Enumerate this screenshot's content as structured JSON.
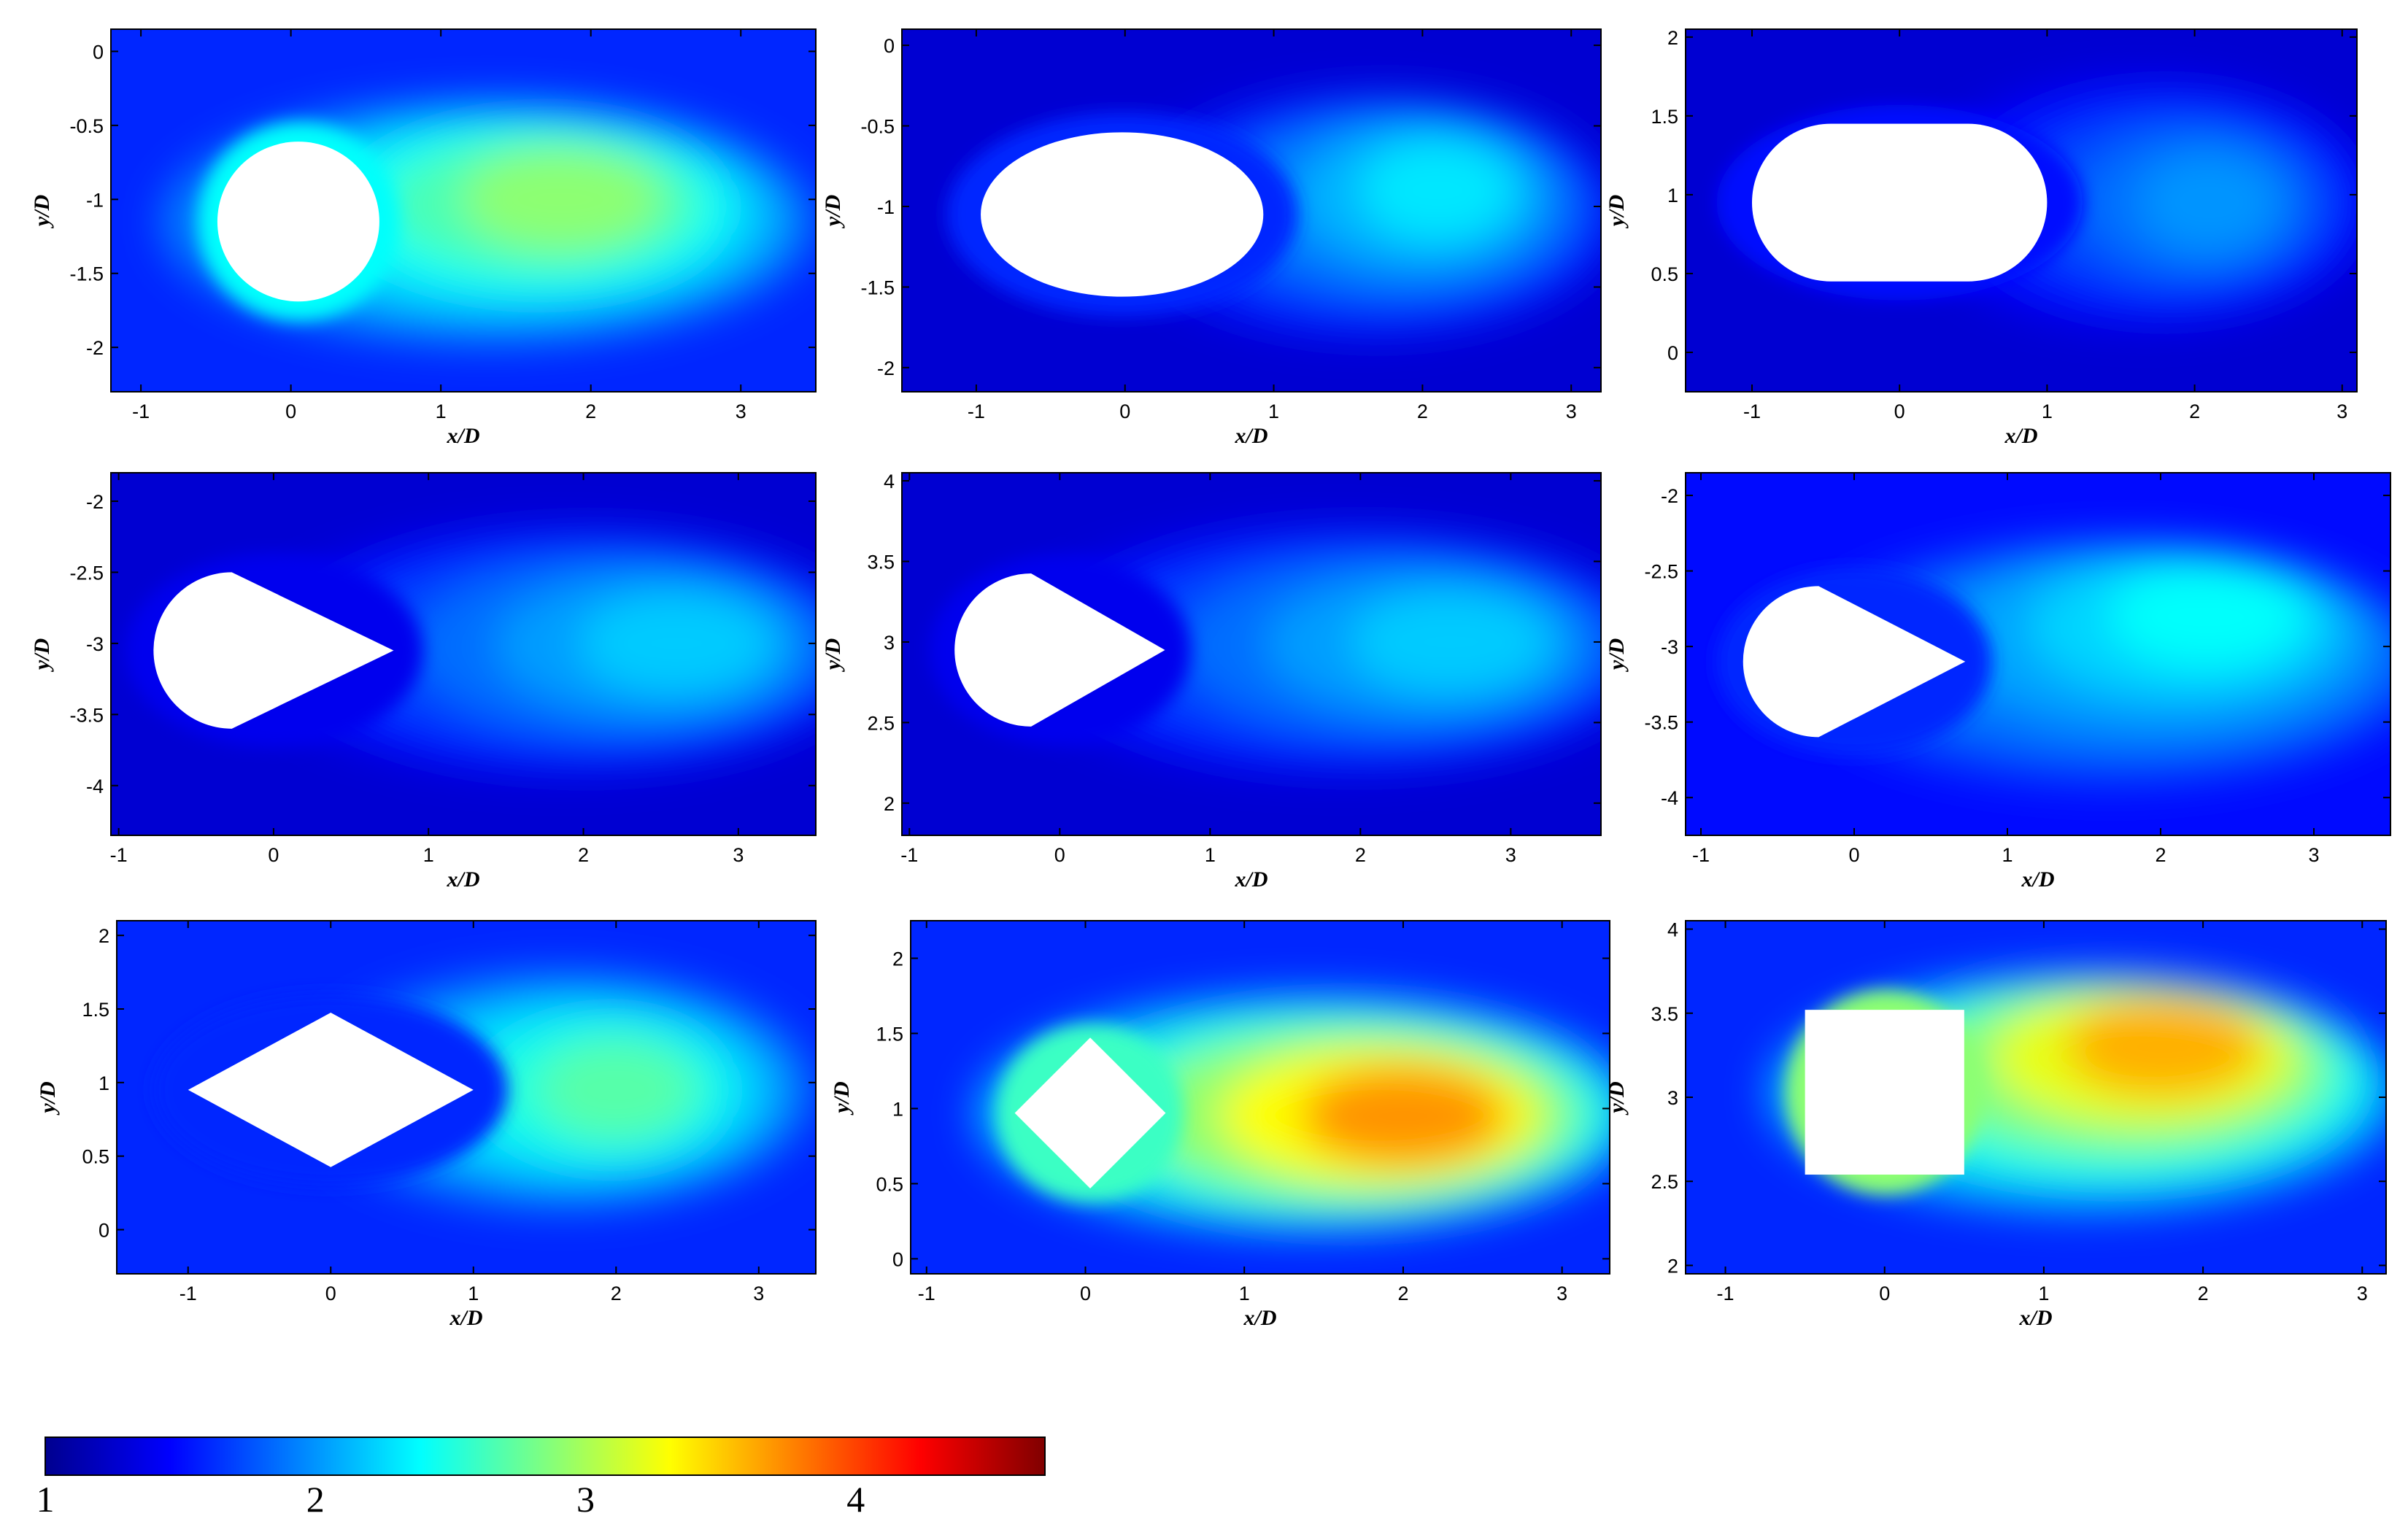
{
  "chart_data": [
    {
      "type": "heatmap",
      "body": "circle",
      "xlabel": "x/D",
      "ylabel": "y/D",
      "xlim": [
        -1.2,
        3.5
      ],
      "ylim": [
        -2.3,
        0.15
      ],
      "xticks": [
        "-1",
        "0",
        "1",
        "2",
        "3"
      ],
      "yticks": [
        "0",
        "-0.5",
        "-1",
        "-1.5",
        "-2"
      ],
      "xtick_values": [
        -1,
        0,
        1,
        2,
        3
      ],
      "ytick_values": [
        0,
        -0.5,
        -1,
        -1.5,
        -2
      ],
      "body_center": [
        0.05,
        -1.15
      ],
      "body_size": [
        1.08,
        1.08
      ],
      "background_value": 1.6,
      "peak_value": 2.9,
      "peak_location": [
        1.8,
        -1.0
      ],
      "near_body_value": 2.4
    },
    {
      "type": "heatmap",
      "body": "ellipse",
      "xlabel": "x/D",
      "ylabel": "y/D",
      "xlim": [
        -1.5,
        3.2
      ],
      "ylim": [
        -2.15,
        0.1
      ],
      "xticks": [
        "-1",
        "0",
        "1",
        "2",
        "3"
      ],
      "yticks": [
        "0",
        "-0.5",
        "-1",
        "-1.5",
        "-2"
      ],
      "xtick_values": [
        -1,
        0,
        1,
        2,
        3
      ],
      "ytick_values": [
        0,
        -0.5,
        -1,
        -1.5,
        -2
      ],
      "body_center": [
        -0.02,
        -1.05
      ],
      "body_size": [
        1.9,
        1.02
      ],
      "background_value": 1.3,
      "peak_value": 2.3,
      "peak_location": [
        2.1,
        -0.9
      ],
      "near_body_value": 1.6
    },
    {
      "type": "heatmap",
      "body": "stadium",
      "xlabel": "x/D",
      "ylabel": "y/D",
      "xlim": [
        -1.45,
        3.1
      ],
      "ylim": [
        -0.25,
        2.05
      ],
      "xticks": [
        "-1",
        "0",
        "1",
        "2",
        "3"
      ],
      "yticks": [
        "2",
        "1.5",
        "1",
        "0.5",
        "0"
      ],
      "xtick_values": [
        -1,
        0,
        1,
        2,
        3
      ],
      "ytick_values": [
        2,
        1.5,
        1,
        0.5,
        0
      ],
      "body_center": [
        0.0,
        0.95
      ],
      "body_size": [
        2.0,
        1.0
      ],
      "background_value": 1.3,
      "peak_value": 2.0,
      "peak_location": [
        2.1,
        0.95
      ],
      "near_body_value": 1.5
    },
    {
      "type": "heatmap",
      "body": "teardrop",
      "xlabel": "x/D",
      "ylabel": "y/D",
      "xlim": [
        -1.05,
        3.5
      ],
      "ylim": [
        -4.35,
        -1.8
      ],
      "xticks": [
        "-1",
        "0",
        "1",
        "2",
        "3"
      ],
      "yticks": [
        "-2",
        "-2.5",
        "-3",
        "-3.5",
        "-4"
      ],
      "xtick_values": [
        -1,
        0,
        1,
        2,
        3
      ],
      "ytick_values": [
        -2,
        -2.5,
        -3,
        -3.5,
        -4
      ],
      "body_center": [
        0.0,
        -3.05
      ],
      "body_size": [
        1.55,
        1.1
      ],
      "background_value": 1.3,
      "peak_value": 2.2,
      "peak_location": [
        2.6,
        -3.0
      ],
      "near_body_value": 1.4
    },
    {
      "type": "heatmap",
      "body": "teardrop",
      "xlabel": "x/D",
      "ylabel": "y/D",
      "xlim": [
        -1.05,
        3.6
      ],
      "ylim": [
        1.8,
        4.05
      ],
      "xticks": [
        "-1",
        "0",
        "1",
        "2",
        "3"
      ],
      "yticks": [
        "4",
        "3.5",
        "3",
        "2.5",
        "2"
      ],
      "xtick_values": [
        -1,
        0,
        1,
        2,
        3
      ],
      "ytick_values": [
        4,
        3.5,
        3,
        2.5,
        2
      ],
      "body_center": [
        0.0,
        2.95
      ],
      "body_size": [
        1.4,
        0.95
      ],
      "background_value": 1.3,
      "peak_value": 2.2,
      "peak_location": [
        2.6,
        3.0
      ],
      "near_body_value": 1.4
    },
    {
      "type": "heatmap",
      "body": "teardrop",
      "xlabel": "x/D",
      "ylabel": "y/D",
      "xlim": [
        -1.1,
        3.5
      ],
      "ylim": [
        -4.25,
        -1.85
      ],
      "xticks": [
        "-1",
        "0",
        "1",
        "2",
        "3"
      ],
      "yticks": [
        "-2",
        "-2.5",
        "-3",
        "-3.5",
        "-4"
      ],
      "xtick_values": [
        -1,
        0,
        1,
        2,
        3
      ],
      "ytick_values": [
        -2,
        -2.5,
        -3,
        -3.5,
        -4
      ],
      "body_center": [
        0.0,
        -3.1
      ],
      "body_size": [
        1.45,
        1.0
      ],
      "background_value": 1.5,
      "peak_value": 2.4,
      "peak_location": [
        2.3,
        -2.8
      ],
      "near_body_value": 1.6
    },
    {
      "type": "heatmap",
      "body": "diamond",
      "xlabel": "x/D",
      "ylabel": "y/D",
      "xlim": [
        -1.5,
        3.4
      ],
      "ylim": [
        -0.3,
        2.1
      ],
      "xticks": [
        "-1",
        "0",
        "1",
        "2",
        "3"
      ],
      "yticks": [
        "2",
        "1.5",
        "1",
        "0.5",
        "0"
      ],
      "xtick_values": [
        -1,
        0,
        1,
        2,
        3
      ],
      "ytick_values": [
        2,
        1.5,
        1,
        0.5,
        0
      ],
      "body_center": [
        0.0,
        0.95
      ],
      "body_size": [
        2.0,
        1.05
      ],
      "background_value": 1.6,
      "peak_value": 2.7,
      "peak_location": [
        2.0,
        0.95
      ],
      "near_body_value": 1.6
    },
    {
      "type": "heatmap",
      "body": "tilted-square",
      "xlabel": "x/D",
      "ylabel": "y/D",
      "xlim": [
        -1.1,
        3.3
      ],
      "ylim": [
        -0.1,
        2.25
      ],
      "xticks": [
        "-1",
        "0",
        "1",
        "2",
        "3"
      ],
      "yticks": [
        "2",
        "1.5",
        "1",
        "0.5",
        "0"
      ],
      "xtick_values": [
        -1,
        0,
        1,
        2,
        3
      ],
      "ytick_values": [
        2,
        1.5,
        1,
        0.5,
        0
      ],
      "body_center": [
        0.03,
        0.97
      ],
      "body_size": [
        0.95,
        0.95
      ],
      "background_value": 1.6,
      "peak_value": 3.7,
      "peak_location": [
        2.0,
        0.95
      ],
      "near_body_value": 2.6
    },
    {
      "type": "heatmap",
      "body": "square",
      "xlabel": "x/D",
      "ylabel": "y/D",
      "xlim": [
        -1.25,
        3.15
      ],
      "ylim": [
        1.95,
        4.05
      ],
      "xticks": [
        "-1",
        "0",
        "1",
        "2",
        "3"
      ],
      "yticks": [
        "4",
        "3.5",
        "3",
        "2.5",
        "2"
      ],
      "xtick_values": [
        -1,
        0,
        1,
        2,
        3
      ],
      "ytick_values": [
        4,
        3.5,
        3,
        2.5,
        2
      ],
      "body_center": [
        0.0,
        3.03
      ],
      "body_size": [
        1.0,
        0.98
      ],
      "background_value": 1.6,
      "peak_value": 3.6,
      "peak_location": [
        1.75,
        3.3
      ],
      "near_body_value": 2.9
    }
  ],
  "colorbar": {
    "min": 1,
    "max": 4.7,
    "ticks": [
      {
        "value": 1,
        "label": "1"
      },
      {
        "value": 2,
        "label": "2"
      },
      {
        "value": 3,
        "label": "3"
      },
      {
        "value": 4,
        "label": "4"
      }
    ],
    "colormap": "jet"
  }
}
